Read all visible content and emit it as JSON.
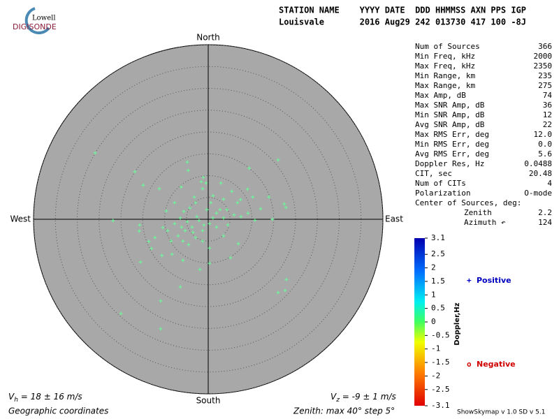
{
  "logo": {
    "top": "Lowell",
    "bottom": "DIGISONDE"
  },
  "header": {
    "line1": "STATION NAME    YYYY DATE  DDD HHMMSS AXN PPS IGP",
    "line2": "Louisvale       2016 Aug29 242 013730 417 100 -8J"
  },
  "stats": [
    {
      "label": "Num of Sources",
      "value": "366"
    },
    {
      "label": "Min Freq, kHz",
      "value": "2000"
    },
    {
      "label": "Max Freq, kHz",
      "value": "2350"
    },
    {
      "label": "Min Range, km",
      "value": "235"
    },
    {
      "label": "Max Range, km",
      "value": "275"
    },
    {
      "label": "Max Amp, dB",
      "value": "74"
    },
    {
      "label": "Max SNR Amp, dB",
      "value": "36"
    },
    {
      "label": "Min SNR Amp, dB",
      "value": "12"
    },
    {
      "label": "Avg SNR Amp, dB",
      "value": "22"
    },
    {
      "label": "Max RMS Err, deg",
      "value": "12.0"
    },
    {
      "label": "Min RMS Err, deg",
      "value": "0.0"
    },
    {
      "label": "Avg RMS Err, deg",
      "value": "5.6"
    },
    {
      "label": "Doppler Res, Hz",
      "value": "0.0488"
    },
    {
      "label": "CIT, sec",
      "value": "20.48"
    },
    {
      "label": "Num of CITs",
      "value": "4"
    },
    {
      "label": "Polarization",
      "value": "O-mode"
    }
  ],
  "center": {
    "title": "Center of Sources, deg:",
    "zenith_label": "Zenith",
    "zenith": "2.2",
    "azimuth_label": "Azimuth ↶",
    "azimuth": "124"
  },
  "colorbar": {
    "label": "Doppler,Hz",
    "lim": [
      -3.1,
      3.1
    ],
    "ticks": [
      3.1,
      2.5,
      2,
      1.5,
      1,
      0.5,
      0,
      -0.5,
      -1,
      -1.5,
      -2,
      -2.5,
      -3.1
    ]
  },
  "legend": [
    {
      "symbol": "+",
      "label": "Positive",
      "color": "#0000c0"
    },
    {
      "symbol": "o",
      "label": "Negative",
      "color": "#d00000"
    }
  ],
  "footer": {
    "vh": {
      "symbol": "V",
      "sub": "h",
      "text": " = 18 ± 16 m/s"
    },
    "vz": {
      "symbol": "V",
      "sub": "z",
      "text": " = -9 ± 1 m/s"
    },
    "coords": "Geographic coordinates",
    "zenith": "Zenith: max 40°  step 5°",
    "version": "ShowSkymap v 1.0  SD v 5.1"
  },
  "chart_data": {
    "type": "scatter",
    "color": "#66ff99",
    "background": "#a8a8a8",
    "directions": {
      "north": "North",
      "south": "South",
      "west": "West",
      "east": "East"
    },
    "xlim": [
      -40,
      40
    ],
    "ylim": [
      -40,
      40
    ],
    "rticks": [
      5,
      10,
      15,
      20,
      25,
      30,
      35,
      40
    ],
    "x": [
      -25.9,
      -4.8,
      -4.6,
      -1.1,
      -0.5,
      -1.6,
      16,
      9.4,
      -16.8,
      -14.9,
      -11.2,
      -6.2,
      2.9,
      5.4,
      7.4,
      9,
      10.2,
      12,
      13.9,
      17.4,
      17.8,
      14.7,
      -21.8,
      -15.8,
      -13.6,
      -13,
      -15.5,
      -10.6,
      -8.3,
      -5.8,
      -1.9,
      0.3,
      5.1,
      6.9,
      -9.6,
      -7.7,
      -5.6,
      -4.2,
      -2.9,
      0.6,
      -0.3,
      1.9,
      3.5,
      -2.1,
      -3.7,
      -5.3,
      -6.9,
      -8.5,
      -1.3,
      0.3,
      -2.9,
      -4.5,
      -6.1,
      -7.7,
      -9.3,
      1.9,
      2.7,
      4.3,
      5.9,
      7.5,
      9.1,
      10.7,
      17.9,
      17.6,
      16,
      -20,
      -10.9,
      -10.9,
      -6.4,
      -15.7,
      -12.2,
      -2.6,
      -1,
      1.1,
      -4.8,
      -6.4,
      -3.5,
      -5.8,
      -10.4,
      -1.3,
      0.3,
      3.5,
      4.5,
      6.7,
      -1.3,
      -3.2,
      1.1,
      3.5
    ],
    "y": [
      15.2,
      13.1,
      11.2,
      9.6,
      8.3,
      8.6,
      13.6,
      11.7,
      10.9,
      7.8,
      7,
      7.4,
      8.3,
      6.4,
      4.5,
      6.9,
      5.1,
      2.4,
      5.1,
      3.5,
      2.7,
      0,
      -0.3,
      -2.7,
      -5.1,
      -6.7,
      -9.8,
      -8.3,
      -8,
      -9.4,
      -11.5,
      -10.1,
      -8.8,
      -5.6,
      1.9,
      3.8,
      1.8,
      2.6,
      3.8,
      3.8,
      2.2,
      1.4,
      0.3,
      -0.3,
      -1.8,
      -2.6,
      -3.8,
      -5,
      -2.6,
      -1,
      -4.2,
      -5.8,
      -1.8,
      -1,
      -2.6,
      -1.8,
      2.2,
      2.2,
      1,
      0.6,
      1.4,
      -0.2,
      -13.8,
      -16.3,
      -16.8,
      -21.6,
      -25.1,
      -18.7,
      -15.5,
      -1.3,
      -4.2,
      0.6,
      -1.3,
      0.3,
      -0.6,
      0.3,
      -3,
      -5,
      -1.9,
      -5,
      -6.6,
      -3.8,
      -1.3,
      3.8,
      7,
      5.1,
      5.4,
      4.6
    ]
  }
}
